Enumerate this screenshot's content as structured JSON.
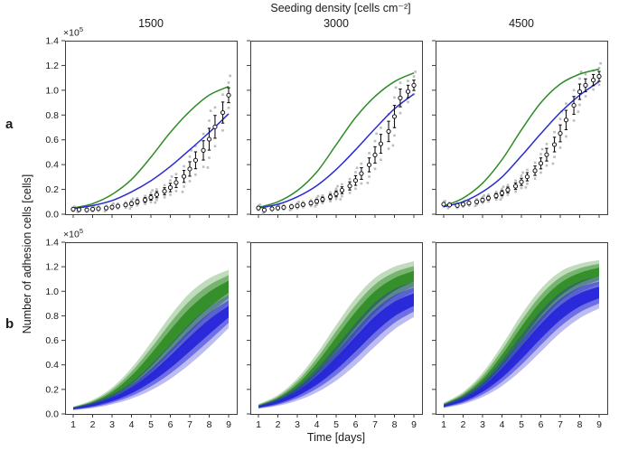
{
  "figure": {
    "suptitle": "Seeding density [cells cm⁻²]",
    "columns": [
      "1500",
      "3000",
      "4500"
    ],
    "row_labels": [
      "a",
      "b"
    ],
    "ylabel": "Number of adhesion cells [cells]",
    "xlabel": "Time [days]",
    "offset_base": "×10",
    "offset_exp": "5"
  },
  "axes": {
    "x_ticks": [
      "1",
      "2",
      "3",
      "4",
      "5",
      "6",
      "7",
      "8",
      "9"
    ],
    "y_ticks": [
      "0.0",
      "0.2",
      "0.4",
      "0.6",
      "0.8",
      "1.0",
      "1.2",
      "1.4"
    ],
    "xlim": [
      1,
      9
    ],
    "ylim": [
      0,
      1.4
    ],
    "y_unit_multiplier": "1e5",
    "grid": false,
    "legend": "none"
  },
  "colors": {
    "green": "#2e8b28",
    "blue": "#2a2ad4",
    "band_green": "#2e8b22",
    "band_blue": "#2222d8",
    "marker": "#141414",
    "marker_fill": "#ffffff",
    "replicate": "#909090",
    "axis": "#3c3c3c",
    "text": "#1a1a1a"
  },
  "chart_data": [
    {
      "panel": "a-1500",
      "row": "a",
      "seeding_density": "1500",
      "type": "line",
      "title": "1500",
      "xlabel": "Time [days]",
      "ylabel": "Number of adhesion cells [cells] ×10^5",
      "x": [
        1,
        2,
        3,
        4,
        5,
        6,
        7,
        8,
        9
      ],
      "green_fit": [
        0.05,
        0.085,
        0.16,
        0.28,
        0.46,
        0.66,
        0.83,
        0.96,
        1.03
      ],
      "blue_fit": [
        0.045,
        0.07,
        0.11,
        0.18,
        0.27,
        0.385,
        0.52,
        0.66,
        0.81
      ],
      "data_days": [
        1,
        1.3,
        1.7,
        2,
        2.3,
        2.7,
        3,
        3.3,
        3.7,
        4,
        4.3,
        4.7,
        5,
        5.3,
        5.7,
        6,
        6.3,
        6.7,
        7,
        7.3,
        7.7,
        8,
        8.3,
        8.7,
        9
      ],
      "data_mean": [
        0.04,
        0.037,
        0.035,
        0.04,
        0.045,
        0.05,
        0.057,
        0.065,
        0.075,
        0.085,
        0.1,
        0.115,
        0.135,
        0.158,
        0.185,
        0.215,
        0.255,
        0.305,
        0.365,
        0.435,
        0.515,
        0.605,
        0.705,
        0.82,
        0.96
      ],
      "data_err": [
        0.008,
        0.008,
        0.009,
        0.009,
        0.01,
        0.01,
        0.011,
        0.012,
        0.013,
        0.015,
        0.017,
        0.019,
        0.022,
        0.025,
        0.029,
        0.034,
        0.04,
        0.048,
        0.058,
        0.068,
        0.078,
        0.088,
        0.092,
        0.085,
        0.06
      ]
    },
    {
      "panel": "a-3000",
      "row": "a",
      "seeding_density": "3000",
      "type": "line",
      "title": "3000",
      "xlabel": "Time [days]",
      "ylabel": "Number of adhesion cells [cells] ×10^5",
      "x": [
        1,
        2,
        3,
        4,
        5,
        6,
        7,
        8,
        9
      ],
      "green_fit": [
        0.055,
        0.1,
        0.19,
        0.34,
        0.56,
        0.78,
        0.95,
        1.07,
        1.14
      ],
      "blue_fit": [
        0.05,
        0.08,
        0.14,
        0.23,
        0.36,
        0.52,
        0.69,
        0.85,
        0.97
      ],
      "data_days": [
        1,
        1.3,
        1.7,
        2,
        2.3,
        2.7,
        3,
        3.3,
        3.7,
        4,
        4.3,
        4.7,
        5,
        5.3,
        5.7,
        6,
        6.3,
        6.7,
        7,
        7.3,
        7.7,
        8,
        8.3,
        8.7,
        9
      ],
      "data_mean": [
        0.05,
        0.034,
        0.044,
        0.05,
        0.055,
        0.061,
        0.068,
        0.078,
        0.09,
        0.104,
        0.12,
        0.14,
        0.164,
        0.193,
        0.228,
        0.272,
        0.328,
        0.398,
        0.478,
        0.568,
        0.668,
        0.788,
        0.938,
        0.99,
        1.04
      ],
      "data_err": [
        0.01,
        0.012,
        0.009,
        0.009,
        0.01,
        0.011,
        0.012,
        0.013,
        0.014,
        0.016,
        0.018,
        0.021,
        0.024,
        0.028,
        0.033,
        0.039,
        0.047,
        0.056,
        0.066,
        0.076,
        0.082,
        0.09,
        0.072,
        0.05,
        0.042
      ]
    },
    {
      "panel": "a-4500",
      "row": "a",
      "seeding_density": "4500",
      "type": "line",
      "title": "4500",
      "xlabel": "Time [days]",
      "ylabel": "Number of adhesion cells [cells] ×10^5",
      "x": [
        1,
        2,
        3,
        4,
        5,
        6,
        7,
        8,
        9
      ],
      "green_fit": [
        0.065,
        0.13,
        0.25,
        0.44,
        0.68,
        0.9,
        1.05,
        1.13,
        1.17
      ],
      "blue_fit": [
        0.06,
        0.1,
        0.18,
        0.3,
        0.47,
        0.65,
        0.82,
        0.96,
        1.07
      ],
      "data_days": [
        1,
        1.3,
        1.7,
        2,
        2.3,
        2.7,
        3,
        3.3,
        3.7,
        4,
        4.3,
        4.7,
        5,
        5.3,
        5.7,
        6,
        6.3,
        6.7,
        7,
        7.3,
        7.7,
        8,
        8.3,
        8.7,
        9
      ],
      "data_mean": [
        0.08,
        0.075,
        0.07,
        0.08,
        0.09,
        0.1,
        0.114,
        0.13,
        0.149,
        0.17,
        0.196,
        0.226,
        0.261,
        0.302,
        0.351,
        0.41,
        0.48,
        0.562,
        0.652,
        0.76,
        0.878,
        0.988,
        1.04,
        1.082,
        1.112
      ],
      "data_err": [
        0.01,
        0.01,
        0.011,
        0.011,
        0.012,
        0.013,
        0.014,
        0.016,
        0.018,
        0.02,
        0.023,
        0.026,
        0.029,
        0.033,
        0.038,
        0.044,
        0.051,
        0.059,
        0.068,
        0.078,
        0.072,
        0.062,
        0.052,
        0.045,
        0.04
      ]
    },
    {
      "panel": "b-1500",
      "row": "b",
      "seeding_density": "1500",
      "type": "area",
      "title": "1500",
      "xlabel": "Time [days]",
      "ylabel": "Number of adhesion cells [cells] ×10^5",
      "x": [
        1,
        2,
        3,
        4,
        5,
        6,
        7,
        8,
        9
      ],
      "green_band_lower": [
        0.035,
        0.06,
        0.105,
        0.18,
        0.295,
        0.44,
        0.6,
        0.76,
        0.9
      ],
      "green_band_upper": [
        0.06,
        0.115,
        0.215,
        0.375,
        0.58,
        0.8,
        0.985,
        1.105,
        1.175
      ],
      "blue_band_lower": [
        0.03,
        0.048,
        0.078,
        0.125,
        0.192,
        0.285,
        0.405,
        0.545,
        0.7
      ],
      "blue_band_upper": [
        0.055,
        0.095,
        0.16,
        0.26,
        0.4,
        0.565,
        0.735,
        0.875,
        0.97
      ]
    },
    {
      "panel": "b-3000",
      "row": "b",
      "seeding_density": "3000",
      "type": "area",
      "title": "3000",
      "xlabel": "Time [days]",
      "ylabel": "Number of adhesion cells [cells] ×10^5",
      "x": [
        1,
        2,
        3,
        4,
        5,
        6,
        7,
        8,
        9
      ],
      "green_band_lower": [
        0.048,
        0.08,
        0.145,
        0.255,
        0.41,
        0.59,
        0.77,
        0.91,
        1.0
      ],
      "green_band_upper": [
        0.08,
        0.155,
        0.29,
        0.49,
        0.725,
        0.945,
        1.11,
        1.2,
        1.245
      ],
      "blue_band_lower": [
        0.042,
        0.066,
        0.108,
        0.175,
        0.272,
        0.4,
        0.55,
        0.69,
        0.79
      ],
      "blue_band_upper": [
        0.07,
        0.128,
        0.225,
        0.37,
        0.55,
        0.74,
        0.91,
        1.02,
        1.075
      ]
    },
    {
      "panel": "b-4500",
      "row": "b",
      "seeding_density": "4500",
      "type": "area",
      "title": "4500",
      "xlabel": "Time [days]",
      "ylabel": "Number of adhesion cells [cells] ×10^5",
      "x": [
        1,
        2,
        3,
        4,
        5,
        6,
        7,
        8,
        9
      ],
      "green_band_lower": [
        0.055,
        0.098,
        0.18,
        0.315,
        0.5,
        0.7,
        0.87,
        0.99,
        1.06
      ],
      "green_band_upper": [
        0.09,
        0.18,
        0.335,
        0.56,
        0.81,
        1.02,
        1.16,
        1.225,
        1.255
      ],
      "blue_band_lower": [
        0.048,
        0.08,
        0.138,
        0.228,
        0.355,
        0.508,
        0.66,
        0.78,
        0.86
      ],
      "blue_band_upper": [
        0.078,
        0.148,
        0.265,
        0.44,
        0.645,
        0.84,
        0.99,
        1.08,
        1.12
      ]
    }
  ]
}
